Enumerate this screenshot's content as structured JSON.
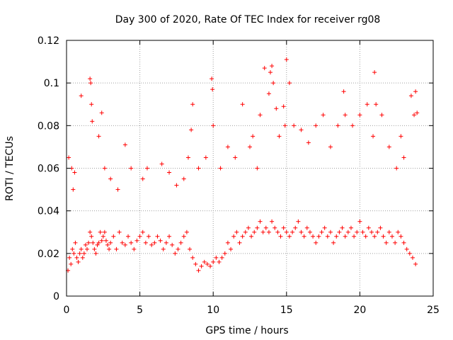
{
  "chart_data": {
    "type": "scatter",
    "title": "Day 300 of 2020, Rate Of TEC Index for receiver rg08",
    "xlabel": "GPS time / hours",
    "ylabel": "ROTI / TECUs",
    "xlim": [
      0,
      25
    ],
    "ylim": [
      0,
      0.12
    ],
    "xticks": [
      0,
      5,
      10,
      15,
      20,
      25
    ],
    "yticks": [
      0,
      0.02,
      0.04,
      0.06,
      0.08,
      0.1,
      0.12
    ],
    "xtick_labels": [
      "0",
      "5",
      "10",
      "15",
      "20",
      "25"
    ],
    "ytick_labels": [
      "0",
      "0.02",
      "0.04",
      "0.06",
      "0.08",
      "0.1",
      "0.12"
    ],
    "grid": true,
    "marker": "+",
    "color": "#ff0000",
    "series": [
      {
        "x": [
          0.1,
          0.2,
          0.3,
          0.4,
          0.5,
          0.6,
          0.7,
          0.8,
          0.9,
          1.0,
          1.1,
          1.2,
          1.3,
          1.4,
          1.5,
          1.6,
          1.7,
          1.8,
          1.9,
          2.0,
          2.1,
          2.2,
          2.3,
          2.4,
          2.5,
          2.6,
          2.7,
          2.8,
          2.9,
          3.0,
          3.2,
          3.4,
          3.6,
          3.8,
          4.0,
          4.2,
          4.4,
          4.6,
          4.8,
          5.0,
          5.2,
          5.4,
          5.6,
          5.8,
          6.0,
          6.2,
          6.4,
          6.6,
          6.8,
          7.0,
          7.2,
          7.4,
          7.6,
          7.8,
          8.0,
          8.2,
          8.4,
          8.6,
          8.8,
          9.0,
          9.2,
          9.4,
          9.6,
          9.8,
          10.0,
          10.2,
          10.4,
          10.6,
          10.8,
          11.0,
          11.2,
          11.4,
          11.6,
          11.8,
          12.0,
          12.2,
          12.4,
          12.6,
          12.8,
          13.0,
          13.2,
          13.4,
          13.6,
          13.8,
          14.0,
          14.2,
          14.4,
          14.6,
          14.8,
          15.0,
          15.2,
          15.4,
          15.6,
          15.8,
          16.0,
          16.2,
          16.4,
          16.6,
          16.8,
          17.0,
          17.2,
          17.4,
          17.6,
          17.8,
          18.0,
          18.2,
          18.4,
          18.6,
          18.8,
          19.0,
          19.2,
          19.4,
          19.6,
          19.8,
          20.0,
          20.2,
          20.4,
          20.6,
          20.8,
          21.0,
          21.2,
          21.4,
          21.6,
          21.8,
          22.0,
          22.2,
          22.4,
          22.6,
          22.8,
          23.0,
          23.2,
          23.4,
          23.6,
          23.8,
          0.15,
          0.35,
          0.45,
          0.55,
          1.0,
          1.6,
          1.65,
          1.7,
          1.75,
          2.2,
          2.4,
          2.6,
          3.0,
          3.5,
          4.0,
          4.4,
          5.2,
          5.5,
          6.5,
          7.0,
          7.5,
          8.0,
          8.3,
          8.6,
          8.5,
          9.0,
          9.5,
          9.9,
          9.95,
          10.0,
          10.5,
          11.0,
          11.5,
          12.0,
          12.5,
          12.7,
          13.0,
          13.2,
          13.5,
          13.8,
          13.9,
          14.0,
          14.1,
          14.3,
          14.5,
          14.8,
          14.9,
          15.0,
          15.2,
          15.5,
          16.0,
          16.5,
          17.0,
          17.5,
          18.0,
          18.5,
          18.9,
          19.0,
          19.5,
          20.0,
          20.5,
          20.9,
          21.0,
          21.1,
          21.5,
          22.0,
          22.5,
          22.8,
          23.0,
          23.5,
          23.7,
          23.8,
          23.9
        ],
        "y": [
          0.012,
          0.018,
          0.015,
          0.022,
          0.02,
          0.025,
          0.018,
          0.016,
          0.02,
          0.022,
          0.018,
          0.02,
          0.024,
          0.022,
          0.025,
          0.03,
          0.028,
          0.025,
          0.022,
          0.02,
          0.024,
          0.025,
          0.03,
          0.026,
          0.028,
          0.03,
          0.026,
          0.024,
          0.022,
          0.025,
          0.028,
          0.022,
          0.03,
          0.025,
          0.024,
          0.028,
          0.025,
          0.022,
          0.026,
          0.028,
          0.03,
          0.025,
          0.028,
          0.024,
          0.025,
          0.028,
          0.026,
          0.022,
          0.025,
          0.028,
          0.024,
          0.02,
          0.022,
          0.025,
          0.028,
          0.03,
          0.022,
          0.018,
          0.015,
          0.012,
          0.014,
          0.016,
          0.015,
          0.014,
          0.016,
          0.018,
          0.016,
          0.018,
          0.02,
          0.025,
          0.022,
          0.028,
          0.03,
          0.025,
          0.028,
          0.03,
          0.032,
          0.028,
          0.03,
          0.032,
          0.035,
          0.03,
          0.032,
          0.03,
          0.035,
          0.032,
          0.03,
          0.028,
          0.032,
          0.03,
          0.028,
          0.03,
          0.032,
          0.035,
          0.03,
          0.028,
          0.032,
          0.03,
          0.028,
          0.025,
          0.028,
          0.03,
          0.032,
          0.028,
          0.03,
          0.025,
          0.028,
          0.03,
          0.032,
          0.028,
          0.03,
          0.032,
          0.028,
          0.03,
          0.035,
          0.03,
          0.028,
          0.032,
          0.03,
          0.028,
          0.03,
          0.032,
          0.028,
          0.025,
          0.03,
          0.028,
          0.025,
          0.03,
          0.028,
          0.025,
          0.022,
          0.02,
          0.018,
          0.015,
          0.065,
          0.06,
          0.05,
          0.058,
          0.094,
          0.102,
          0.1,
          0.09,
          0.082,
          0.075,
          0.086,
          0.06,
          0.055,
          0.05,
          0.071,
          0.06,
          0.055,
          0.06,
          0.062,
          0.058,
          0.052,
          0.055,
          0.065,
          0.09,
          0.078,
          0.06,
          0.065,
          0.102,
          0.097,
          0.08,
          0.06,
          0.07,
          0.065,
          0.09,
          0.07,
          0.075,
          0.06,
          0.085,
          0.107,
          0.095,
          0.105,
          0.108,
          0.1,
          0.088,
          0.075,
          0.089,
          0.08,
          0.111,
          0.1,
          0.08,
          0.078,
          0.072,
          0.08,
          0.085,
          0.07,
          0.08,
          0.096,
          0.085,
          0.08,
          0.085,
          0.09,
          0.075,
          0.105,
          0.09,
          0.085,
          0.07,
          0.06,
          0.075,
          0.065,
          0.094,
          0.085,
          0.096,
          0.086
        ]
      }
    ]
  }
}
